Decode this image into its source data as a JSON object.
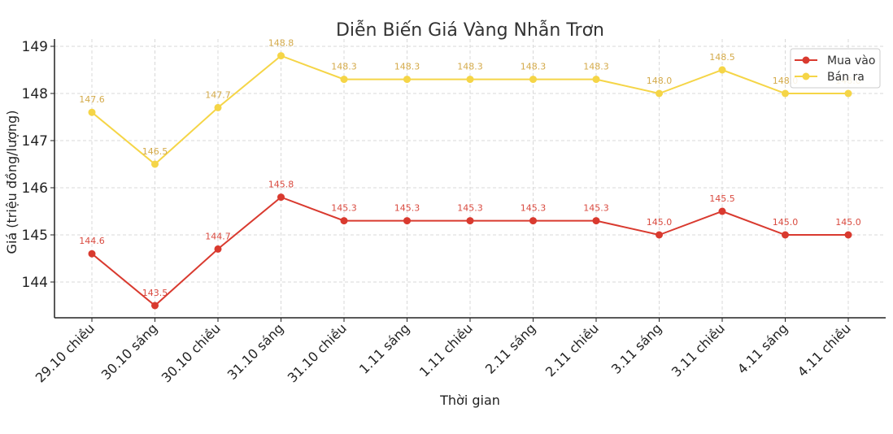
{
  "chart_data": {
    "type": "line",
    "title": "Diễn Biến Giá Vàng Nhẫn Trơn",
    "xlabel": "Thời gian",
    "ylabel": "Giá (triệu đồng/lượng)",
    "categories": [
      "29.10 chiều",
      "30.10 sáng",
      "30.10 chiều",
      "31.10 sáng",
      "31.10 chiều",
      "1.11 sáng",
      "1.11 chiều",
      "2.11 sáng",
      "2.11 chiều",
      "3.11 sáng",
      "3.11 chiều",
      "4.11 sáng",
      "4.11 chiều"
    ],
    "series": [
      {
        "name": "Mua vào",
        "color": "#d93a2f",
        "label_color": "#d94a3f",
        "values": [
          144.6,
          143.5,
          144.7,
          145.8,
          145.3,
          145.3,
          145.3,
          145.3,
          145.3,
          145.0,
          145.5,
          145.0,
          145.0
        ]
      },
      {
        "name": "Bán ra",
        "color": "#f5d547",
        "label_color": "#d4aa4a",
        "values": [
          147.6,
          146.5,
          147.7,
          148.8,
          148.3,
          148.3,
          148.3,
          148.3,
          148.3,
          148.0,
          148.5,
          148.0,
          148.0
        ]
      }
    ],
    "yticks": [
      144,
      145,
      146,
      147,
      148,
      149
    ],
    "ylim": [
      143.25,
      149.2
    ],
    "grid": true,
    "legend_position": "upper right"
  }
}
